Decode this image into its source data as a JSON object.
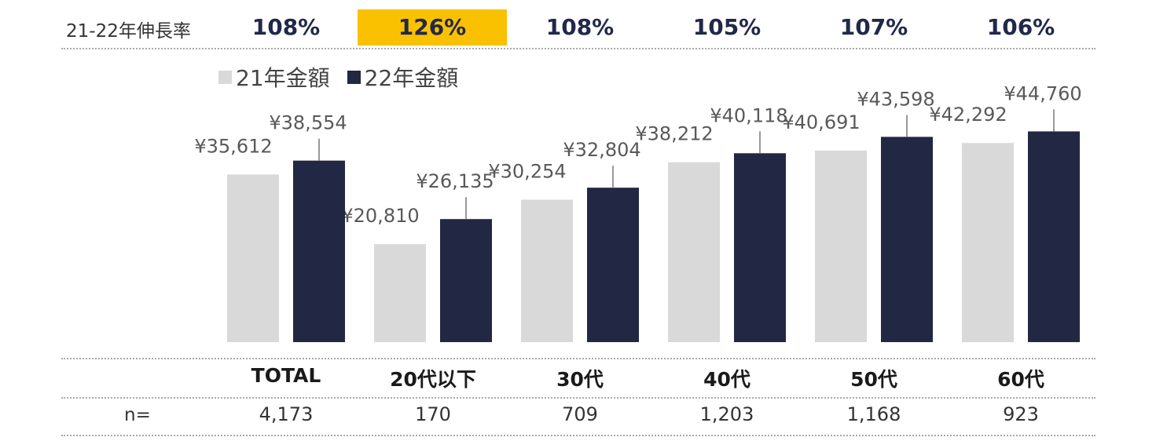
{
  "growth_row": {
    "label": "21-22年伸長率",
    "values": [
      "108%",
      "126%",
      "108%",
      "105%",
      "107%",
      "106%"
    ],
    "highlight_index": 1,
    "highlight_color": "#f9c100"
  },
  "n_row": {
    "label": "n=",
    "values": [
      "4,173",
      "170",
      "709",
      "1,203",
      "1,168",
      "923"
    ]
  },
  "chart_data": {
    "type": "bar",
    "categories": [
      "TOTAL",
      "20代以下",
      "30代",
      "40代",
      "50代",
      "60代"
    ],
    "series": [
      {
        "name": "21年金額",
        "color": "#d9d9d9",
        "values": [
          35612,
          20810,
          30254,
          38212,
          40691,
          42292
        ],
        "labels": [
          "¥35,612",
          "¥20,810",
          "¥30,254",
          "¥38,212",
          "¥40,691",
          "¥42,292"
        ]
      },
      {
        "name": "22年金額",
        "color": "#222744",
        "values": [
          38554,
          26135,
          32804,
          40118,
          43598,
          44760
        ],
        "labels": [
          "¥38,554",
          "¥26,135",
          "¥32,804",
          "¥40,118",
          "¥43,598",
          "¥44,760"
        ]
      }
    ],
    "ylim": [
      0,
      45000
    ],
    "legend": "top-left",
    "grid": false
  }
}
